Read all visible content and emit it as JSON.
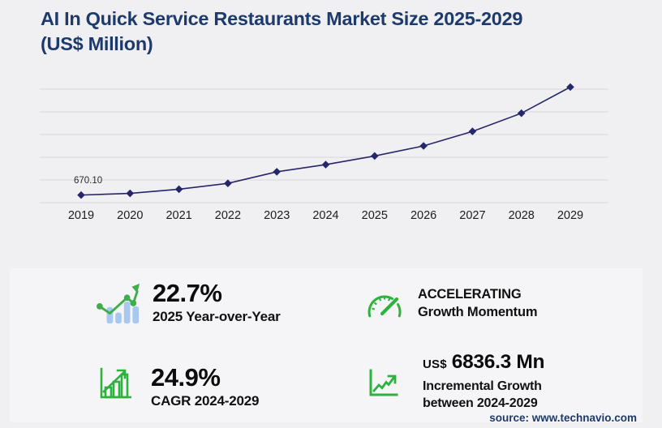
{
  "header": {
    "title_line1": "AI In Quick Service Restaurants Market Size 2025-2029",
    "title_line2": "(US$ Million)"
  },
  "chart_data": {
    "type": "line",
    "title": "AI In Quick Service Restaurants Market Size 2025-2029 (US$ Million)",
    "x": [
      "2019",
      "2020",
      "2021",
      "2022",
      "2023",
      "2024",
      "2025",
      "2026",
      "2027",
      "2028",
      "2029"
    ],
    "values": [
      670.1,
      820,
      1180,
      1700,
      2720,
      3351.8,
      4112.7,
      5000,
      6280,
      7880,
      10188.1
    ],
    "point_labels": [
      {
        "x": "2019",
        "text": "670.10"
      }
    ],
    "xlabel": "",
    "ylabel": "US$ Million",
    "ylim": [
      0,
      10500
    ],
    "gridline_step": 2000,
    "gridline_values": [
      0,
      2000,
      4000,
      6000,
      8000,
      10000
    ],
    "grid": true,
    "legend": "none",
    "marker": "diamond",
    "line_color": "#26266b"
  },
  "stats": {
    "yoy": {
      "value": "22.7%",
      "label": "2025 Year-over-Year"
    },
    "cagr": {
      "value": "24.9%",
      "label": "CAGR 2024-2029"
    },
    "momentum": {
      "line1": "ACCELERATING",
      "line2": "Growth Momentum"
    },
    "incremental": {
      "currency": "US$",
      "value": "6836.3 Mn",
      "line1": "Incremental Growth",
      "line2": "between 2024-2029"
    }
  },
  "source": {
    "label": "source: www.technavio.com"
  },
  "colors": {
    "title": "#1d3a6b",
    "chart_line": "#26266b",
    "grid": "#d8d8dc",
    "green": "#34b43a",
    "bar_blue": "#a9c8f0",
    "background": "#f0f0f3",
    "panel": "#f5f5f7"
  }
}
